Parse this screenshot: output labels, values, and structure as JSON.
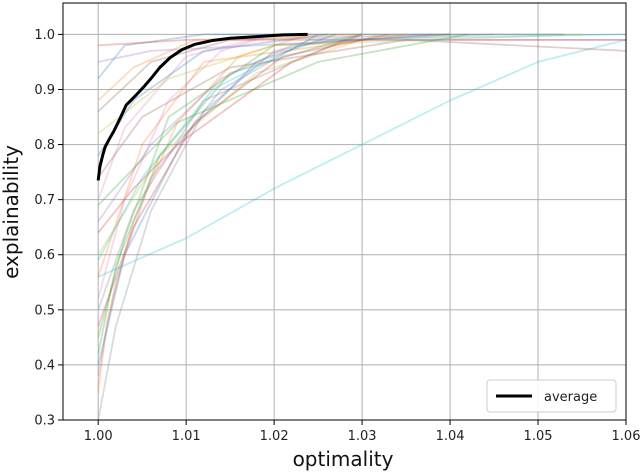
{
  "chart_data": {
    "type": "line",
    "title": "",
    "xlabel": "optimality",
    "ylabel": "explainability",
    "xlim": [
      0.996,
      1.06
    ],
    "ylim": [
      0.3,
      1.057
    ],
    "xticks": [
      1.0,
      1.01,
      1.02,
      1.03,
      1.04,
      1.05,
      1.06
    ],
    "xtick_labels": [
      "1.00",
      "1.01",
      "1.02",
      "1.03",
      "1.04",
      "1.05",
      "1.06"
    ],
    "yticks": [
      0.3,
      0.4,
      0.5,
      0.6,
      0.7,
      0.8,
      0.9,
      1.0
    ],
    "ytick_labels": [
      "0.3",
      "0.4",
      "0.5",
      "0.6",
      "0.7",
      "0.8",
      "0.9",
      "1.0"
    ],
    "grid": true,
    "legend": {
      "placement": "bottom-right",
      "entries": [
        "average"
      ]
    },
    "series_colors": [
      "#1f77b4",
      "#ff7f0e",
      "#2ca02c",
      "#d62728",
      "#9467bd",
      "#8c564b",
      "#e377c2",
      "#7f7f7f",
      "#bcbd22",
      "#17becf"
    ],
    "average_color": "#000000",
    "series": [
      {
        "values": [
          [
            1.0,
            0.92
          ],
          [
            1.003,
            0.98
          ],
          [
            1.012,
            1.0
          ],
          [
            1.053,
            1.0
          ]
        ]
      },
      {
        "values": [
          [
            1.0,
            0.56
          ],
          [
            1.005,
            0.8
          ],
          [
            1.012,
            0.95
          ],
          [
            1.035,
            1.0
          ]
        ]
      },
      {
        "values": [
          [
            1.0,
            0.45
          ],
          [
            1.003,
            0.63
          ],
          [
            1.008,
            0.85
          ],
          [
            1.02,
            0.98
          ],
          [
            1.04,
            1.0
          ]
        ]
      },
      {
        "values": [
          [
            1.0,
            0.64
          ],
          [
            1.004,
            0.72
          ],
          [
            1.009,
            0.8
          ],
          [
            1.022,
            0.95
          ],
          [
            1.03,
            1.0
          ]
        ]
      },
      {
        "values": [
          [
            1.0,
            0.38
          ],
          [
            1.002,
            0.55
          ],
          [
            1.006,
            0.74
          ],
          [
            1.014,
            0.9
          ],
          [
            1.025,
            1.0
          ]
        ]
      },
      {
        "values": [
          [
            1.0,
            0.86
          ],
          [
            1.006,
            0.95
          ],
          [
            1.015,
            0.99
          ],
          [
            1.04,
            1.0
          ]
        ]
      },
      {
        "values": [
          [
            1.0,
            0.7
          ],
          [
            1.003,
            0.83
          ],
          [
            1.01,
            0.96
          ],
          [
            1.02,
            1.0
          ]
        ]
      },
      {
        "values": [
          [
            1.0,
            0.5
          ],
          [
            1.004,
            0.68
          ],
          [
            1.012,
            0.88
          ],
          [
            1.028,
            0.99
          ],
          [
            1.045,
            1.0
          ]
        ]
      },
      {
        "values": [
          [
            1.0,
            0.6
          ],
          [
            1.007,
            0.78
          ],
          [
            1.018,
            0.93
          ],
          [
            1.032,
            1.0
          ]
        ]
      },
      {
        "values": [
          [
            1.0,
            0.56
          ],
          [
            1.01,
            0.63
          ],
          [
            1.02,
            0.72
          ],
          [
            1.03,
            0.8
          ],
          [
            1.04,
            0.88
          ],
          [
            1.05,
            0.95
          ],
          [
            1.06,
            0.99
          ]
        ]
      },
      {
        "values": [
          [
            1.0,
            0.78
          ],
          [
            1.004,
            0.88
          ],
          [
            1.012,
            0.97
          ],
          [
            1.026,
            1.0
          ]
        ]
      },
      {
        "values": [
          [
            1.0,
            0.35
          ],
          [
            1.001,
            0.48
          ],
          [
            1.004,
            0.66
          ],
          [
            1.009,
            0.84
          ],
          [
            1.016,
            0.96
          ],
          [
            1.024,
            1.0
          ]
        ]
      },
      {
        "values": [
          [
            1.0,
            0.42
          ],
          [
            1.002,
            0.58
          ],
          [
            1.007,
            0.78
          ],
          [
            1.015,
            0.93
          ],
          [
            1.03,
            1.0
          ]
        ]
      },
      {
        "values": [
          [
            1.0,
            0.98
          ],
          [
            1.01,
            0.99
          ],
          [
            1.06,
            0.99
          ]
        ]
      },
      {
        "values": [
          [
            1.0,
            0.66
          ],
          [
            1.006,
            0.8
          ],
          [
            1.014,
            0.92
          ],
          [
            1.022,
            0.98
          ],
          [
            1.038,
            1.0
          ]
        ]
      },
      {
        "values": [
          [
            1.0,
            0.74
          ],
          [
            1.005,
            0.85
          ],
          [
            1.015,
            0.94
          ],
          [
            1.035,
            0.99
          ],
          [
            1.06,
            0.97
          ]
        ]
      },
      {
        "values": [
          [
            1.0,
            0.52
          ],
          [
            1.003,
            0.7
          ],
          [
            1.008,
            0.88
          ],
          [
            1.014,
            0.97
          ],
          [
            1.02,
            1.0
          ]
        ]
      },
      {
        "values": [
          [
            1.0,
            0.3
          ],
          [
            1.002,
            0.47
          ],
          [
            1.006,
            0.68
          ],
          [
            1.012,
            0.86
          ],
          [
            1.02,
            0.97
          ],
          [
            1.03,
            1.0
          ]
        ]
      },
      {
        "values": [
          [
            1.0,
            0.82
          ],
          [
            1.008,
            0.92
          ],
          [
            1.02,
            0.98
          ],
          [
            1.055,
            1.0
          ]
        ]
      },
      {
        "values": [
          [
            1.0,
            0.59
          ],
          [
            1.005,
            0.74
          ],
          [
            1.013,
            0.9
          ],
          [
            1.024,
            0.99
          ],
          [
            1.06,
            1.0
          ]
        ]
      },
      {
        "values": [
          [
            1.0,
            0.4
          ],
          [
            1.003,
            0.6
          ],
          [
            1.01,
            0.82
          ],
          [
            1.018,
            0.95
          ],
          [
            1.027,
            1.0
          ]
        ]
      },
      {
        "values": [
          [
            1.0,
            0.88
          ],
          [
            1.004,
            0.94
          ],
          [
            1.011,
            0.99
          ],
          [
            1.03,
            1.0
          ]
        ]
      },
      {
        "values": [
          [
            1.0,
            0.69
          ],
          [
            1.009,
            0.84
          ],
          [
            1.025,
            0.95
          ],
          [
            1.042,
            1.0
          ]
        ]
      },
      {
        "values": [
          [
            1.0,
            0.47
          ],
          [
            1.004,
            0.65
          ],
          [
            1.011,
            0.84
          ],
          [
            1.021,
            0.96
          ],
          [
            1.033,
            1.0
          ]
        ]
      },
      {
        "values": [
          [
            1.0,
            0.95
          ],
          [
            1.006,
            0.97
          ],
          [
            1.03,
            0.99
          ],
          [
            1.06,
            0.99
          ]
        ]
      }
    ],
    "average": {
      "name": "average",
      "values": [
        [
          1.0,
          0.735
        ],
        [
          1.0002,
          0.76
        ],
        [
          1.0005,
          0.78
        ],
        [
          1.0008,
          0.796
        ],
        [
          1.0012,
          0.808
        ],
        [
          1.0018,
          0.825
        ],
        [
          1.0025,
          0.848
        ],
        [
          1.0032,
          0.872
        ],
        [
          1.0042,
          0.888
        ],
        [
          1.0052,
          0.905
        ],
        [
          1.006,
          0.92
        ],
        [
          1.007,
          0.94
        ],
        [
          1.0082,
          0.958
        ],
        [
          1.0095,
          0.972
        ],
        [
          1.011,
          0.982
        ],
        [
          1.013,
          0.989
        ],
        [
          1.015,
          0.993
        ],
        [
          1.018,
          0.996
        ],
        [
          1.021,
          0.999
        ],
        [
          1.0238,
          1.0
        ]
      ]
    }
  }
}
